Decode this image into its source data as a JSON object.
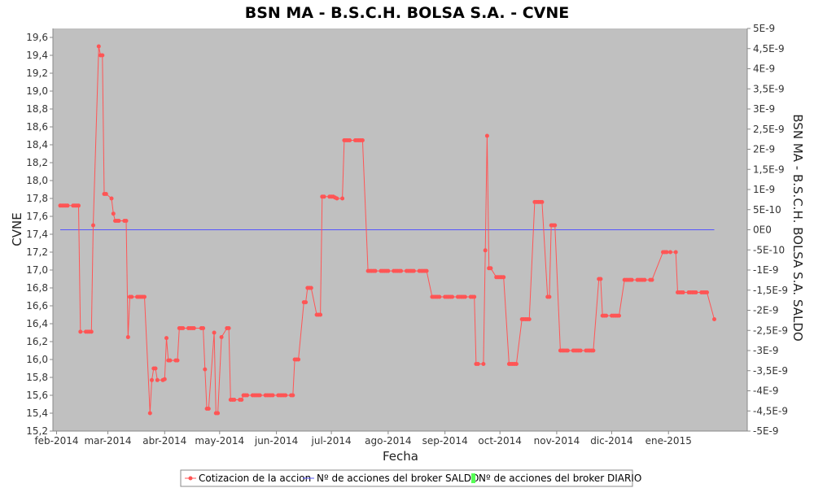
{
  "chart_data": {
    "type": "line",
    "title": "BSN MA - B.S.C.H. BOLSA S.A. - CVNE",
    "xlabel": "Fecha",
    "ylabel": "CVNE",
    "y2label": "BSN MA - B.S.C.H. BOLSA S.A. SALDO",
    "ylim": [
      15.2,
      19.7
    ],
    "y2lim": [
      -5e-09,
      5e-09
    ],
    "xlim": [
      "2014-01-30",
      "2015-02-13"
    ],
    "grid": false,
    "legend_position": "bottom",
    "colors": {
      "plot_background": "#c0c0c0",
      "price_series": "#ff5555",
      "saldo_series": "#5555ff",
      "diario_series": "#55ff55"
    },
    "y_ticks": [
      "15,2",
      "15,4",
      "15,6",
      "15,8",
      "16,0",
      "16,2",
      "16,4",
      "16,6",
      "16,8",
      "17,0",
      "17,2",
      "17,4",
      "17,6",
      "17,8",
      "18,0",
      "18,2",
      "18,4",
      "18,6",
      "18,8",
      "19,0",
      "19,2",
      "19,4",
      "19,6"
    ],
    "y2_ticks": [
      "-5E-9",
      "-4,5E-9",
      "-4E-9",
      "-3,5E-9",
      "-3E-9",
      "-2,5E-9",
      "-2E-9",
      "-1,5E-9",
      "-1E-9",
      "-5E-10",
      "0E0",
      "5E-10",
      "1E-9",
      "1,5E-9",
      "2E-9",
      "2,5E-9",
      "3E-9",
      "3,5E-9",
      "4E-9",
      "4,5E-9",
      "5E-9"
    ],
    "x_ticks": [
      {
        "date": "2014-02-01",
        "label": "feb-2014"
      },
      {
        "date": "2014-03-01",
        "label": "mar-2014"
      },
      {
        "date": "2014-04-01",
        "label": "abr-2014"
      },
      {
        "date": "2014-05-01",
        "label": "may-2014"
      },
      {
        "date": "2014-06-01",
        "label": "jun-2014"
      },
      {
        "date": "2014-07-01",
        "label": "jul-2014"
      },
      {
        "date": "2014-08-01",
        "label": "ago-2014"
      },
      {
        "date": "2014-09-01",
        "label": "sep-2014"
      },
      {
        "date": "2014-10-01",
        "label": "oct-2014"
      },
      {
        "date": "2014-11-01",
        "label": "nov-2014"
      },
      {
        "date": "2014-12-01",
        "label": "dic-2014"
      },
      {
        "date": "2015-01-01",
        "label": "ene-2015"
      }
    ],
    "series": [
      {
        "name": "Cotizacion de la accion",
        "axis": "left",
        "points": [
          [
            "2014-02-03",
            17.72
          ],
          [
            "2014-02-04",
            17.72
          ],
          [
            "2014-02-05",
            17.72
          ],
          [
            "2014-02-06",
            17.72
          ],
          [
            "2014-02-07",
            17.72
          ],
          [
            "2014-02-10",
            17.72
          ],
          [
            "2014-02-11",
            17.72
          ],
          [
            "2014-02-12",
            17.72
          ],
          [
            "2014-02-13",
            17.72
          ],
          [
            "2014-02-14",
            16.31
          ],
          [
            "2014-02-17",
            16.31
          ],
          [
            "2014-02-18",
            16.31
          ],
          [
            "2014-02-19",
            16.31
          ],
          [
            "2014-02-20",
            16.31
          ],
          [
            "2014-02-21",
            17.5
          ],
          [
            "2014-02-24",
            19.5
          ],
          [
            "2014-02-25",
            19.4
          ],
          [
            "2014-02-26",
            19.4
          ],
          [
            "2014-02-27",
            17.85
          ],
          [
            "2014-02-28",
            17.85
          ],
          [
            "2014-03-03",
            17.8
          ],
          [
            "2014-03-04",
            17.63
          ],
          [
            "2014-03-05",
            17.55
          ],
          [
            "2014-03-06",
            17.55
          ],
          [
            "2014-03-07",
            17.55
          ],
          [
            "2014-03-10",
            17.55
          ],
          [
            "2014-03-11",
            17.55
          ],
          [
            "2014-03-12",
            16.25
          ],
          [
            "2014-03-13",
            16.7
          ],
          [
            "2014-03-14",
            16.7
          ],
          [
            "2014-03-17",
            16.7
          ],
          [
            "2014-03-18",
            16.7
          ],
          [
            "2014-03-19",
            16.7
          ],
          [
            "2014-03-20",
            16.7
          ],
          [
            "2014-03-21",
            16.7
          ],
          [
            "2014-03-24",
            15.4
          ],
          [
            "2014-03-25",
            15.77
          ],
          [
            "2014-03-26",
            15.9
          ],
          [
            "2014-03-27",
            15.9
          ],
          [
            "2014-03-28",
            15.77
          ],
          [
            "2014-03-31",
            15.77
          ],
          [
            "2014-04-01",
            15.78
          ],
          [
            "2014-04-02",
            16.24
          ],
          [
            "2014-04-03",
            15.99
          ],
          [
            "2014-04-04",
            15.99
          ],
          [
            "2014-04-07",
            15.99
          ],
          [
            "2014-04-08",
            15.99
          ],
          [
            "2014-04-09",
            16.35
          ],
          [
            "2014-04-10",
            16.35
          ],
          [
            "2014-04-11",
            16.35
          ],
          [
            "2014-04-14",
            16.35
          ],
          [
            "2014-04-15",
            16.35
          ],
          [
            "2014-04-16",
            16.35
          ],
          [
            "2014-04-17",
            16.35
          ],
          [
            "2014-04-21",
            16.35
          ],
          [
            "2014-04-22",
            16.35
          ],
          [
            "2014-04-23",
            15.89
          ],
          [
            "2014-04-24",
            15.45
          ],
          [
            "2014-04-25",
            15.45
          ],
          [
            "2014-04-28",
            16.3
          ],
          [
            "2014-04-29",
            15.4
          ],
          [
            "2014-04-30",
            15.4
          ],
          [
            "2014-05-02",
            16.25
          ],
          [
            "2014-05-05",
            16.35
          ],
          [
            "2014-05-06",
            16.35
          ],
          [
            "2014-05-07",
            15.55
          ],
          [
            "2014-05-08",
            15.55
          ],
          [
            "2014-05-09",
            15.55
          ],
          [
            "2014-05-12",
            15.55
          ],
          [
            "2014-05-13",
            15.55
          ],
          [
            "2014-05-14",
            15.6
          ],
          [
            "2014-05-15",
            15.6
          ],
          [
            "2014-05-16",
            15.6
          ],
          [
            "2014-05-19",
            15.6
          ],
          [
            "2014-05-20",
            15.6
          ],
          [
            "2014-05-21",
            15.6
          ],
          [
            "2014-05-22",
            15.6
          ],
          [
            "2014-05-23",
            15.6
          ],
          [
            "2014-05-26",
            15.6
          ],
          [
            "2014-05-27",
            15.6
          ],
          [
            "2014-05-28",
            15.6
          ],
          [
            "2014-05-29",
            15.6
          ],
          [
            "2014-05-30",
            15.6
          ],
          [
            "2014-06-02",
            15.6
          ],
          [
            "2014-06-03",
            15.6
          ],
          [
            "2014-06-04",
            15.6
          ],
          [
            "2014-06-05",
            15.6
          ],
          [
            "2014-06-06",
            15.6
          ],
          [
            "2014-06-09",
            15.6
          ],
          [
            "2014-06-10",
            15.6
          ],
          [
            "2014-06-11",
            16.0
          ],
          [
            "2014-06-12",
            16.0
          ],
          [
            "2014-06-13",
            16.0
          ],
          [
            "2014-06-16",
            16.64
          ],
          [
            "2014-06-17",
            16.64
          ],
          [
            "2014-06-18",
            16.8
          ],
          [
            "2014-06-19",
            16.8
          ],
          [
            "2014-06-20",
            16.8
          ],
          [
            "2014-06-23",
            16.5
          ],
          [
            "2014-06-24",
            16.5
          ],
          [
            "2014-06-25",
            16.5
          ],
          [
            "2014-06-26",
            17.82
          ],
          [
            "2014-06-27",
            17.82
          ],
          [
            "2014-06-30",
            17.82
          ],
          [
            "2014-07-01",
            17.82
          ],
          [
            "2014-07-02",
            17.82
          ],
          [
            "2014-07-03",
            17.81
          ],
          [
            "2014-07-04",
            17.8
          ],
          [
            "2014-07-07",
            17.8
          ],
          [
            "2014-07-08",
            18.45
          ],
          [
            "2014-07-09",
            18.45
          ],
          [
            "2014-07-10",
            18.45
          ],
          [
            "2014-07-11",
            18.45
          ],
          [
            "2014-07-14",
            18.45
          ],
          [
            "2014-07-15",
            18.45
          ],
          [
            "2014-07-16",
            18.45
          ],
          [
            "2014-07-17",
            18.45
          ],
          [
            "2014-07-18",
            18.45
          ],
          [
            "2014-07-21",
            16.99
          ],
          [
            "2014-07-22",
            16.99
          ],
          [
            "2014-07-23",
            16.99
          ],
          [
            "2014-07-24",
            16.99
          ],
          [
            "2014-07-25",
            16.99
          ],
          [
            "2014-07-28",
            16.99
          ],
          [
            "2014-07-29",
            16.99
          ],
          [
            "2014-07-30",
            16.99
          ],
          [
            "2014-07-31",
            16.99
          ],
          [
            "2014-08-01",
            16.99
          ],
          [
            "2014-08-04",
            16.99
          ],
          [
            "2014-08-05",
            16.99
          ],
          [
            "2014-08-06",
            16.99
          ],
          [
            "2014-08-07",
            16.99
          ],
          [
            "2014-08-08",
            16.99
          ],
          [
            "2014-08-11",
            16.99
          ],
          [
            "2014-08-12",
            16.99
          ],
          [
            "2014-08-13",
            16.99
          ],
          [
            "2014-08-14",
            16.99
          ],
          [
            "2014-08-15",
            16.99
          ],
          [
            "2014-08-18",
            16.99
          ],
          [
            "2014-08-19",
            16.99
          ],
          [
            "2014-08-20",
            16.99
          ],
          [
            "2014-08-21",
            16.99
          ],
          [
            "2014-08-22",
            16.99
          ],
          [
            "2014-08-25",
            16.7
          ],
          [
            "2014-08-26",
            16.7
          ],
          [
            "2014-08-27",
            16.7
          ],
          [
            "2014-08-28",
            16.7
          ],
          [
            "2014-08-29",
            16.7
          ],
          [
            "2014-09-01",
            16.7
          ],
          [
            "2014-09-02",
            16.7
          ],
          [
            "2014-09-03",
            16.7
          ],
          [
            "2014-09-04",
            16.7
          ],
          [
            "2014-09-05",
            16.7
          ],
          [
            "2014-09-08",
            16.7
          ],
          [
            "2014-09-09",
            16.7
          ],
          [
            "2014-09-10",
            16.7
          ],
          [
            "2014-09-11",
            16.7
          ],
          [
            "2014-09-12",
            16.7
          ],
          [
            "2014-09-15",
            16.7
          ],
          [
            "2014-09-16",
            16.7
          ],
          [
            "2014-09-17",
            16.7
          ],
          [
            "2014-09-18",
            15.95
          ],
          [
            "2014-09-19",
            15.95
          ],
          [
            "2014-09-22",
            15.95
          ],
          [
            "2014-09-23",
            17.22
          ],
          [
            "2014-09-24",
            18.5
          ],
          [
            "2014-09-25",
            17.02
          ],
          [
            "2014-09-26",
            17.02
          ],
          [
            "2014-09-29",
            16.92
          ],
          [
            "2014-09-30",
            16.92
          ],
          [
            "2014-10-01",
            16.92
          ],
          [
            "2014-10-02",
            16.92
          ],
          [
            "2014-10-03",
            16.92
          ],
          [
            "2014-10-06",
            15.95
          ],
          [
            "2014-10-07",
            15.95
          ],
          [
            "2014-10-08",
            15.95
          ],
          [
            "2014-10-09",
            15.95
          ],
          [
            "2014-10-10",
            15.95
          ],
          [
            "2014-10-13",
            16.45
          ],
          [
            "2014-10-14",
            16.45
          ],
          [
            "2014-10-15",
            16.45
          ],
          [
            "2014-10-16",
            16.45
          ],
          [
            "2014-10-17",
            16.45
          ],
          [
            "2014-10-20",
            17.76
          ],
          [
            "2014-10-21",
            17.76
          ],
          [
            "2014-10-22",
            17.76
          ],
          [
            "2014-10-23",
            17.76
          ],
          [
            "2014-10-24",
            17.76
          ],
          [
            "2014-10-27",
            16.7
          ],
          [
            "2014-10-28",
            16.7
          ],
          [
            "2014-10-29",
            17.5
          ],
          [
            "2014-10-30",
            17.5
          ],
          [
            "2014-10-31",
            17.5
          ],
          [
            "2014-11-03",
            16.1
          ],
          [
            "2014-11-04",
            16.1
          ],
          [
            "2014-11-05",
            16.1
          ],
          [
            "2014-11-06",
            16.1
          ],
          [
            "2014-11-07",
            16.1
          ],
          [
            "2014-11-10",
            16.1
          ],
          [
            "2014-11-11",
            16.1
          ],
          [
            "2014-11-12",
            16.1
          ],
          [
            "2014-11-13",
            16.1
          ],
          [
            "2014-11-14",
            16.1
          ],
          [
            "2014-11-17",
            16.1
          ],
          [
            "2014-11-18",
            16.1
          ],
          [
            "2014-11-19",
            16.1
          ],
          [
            "2014-11-20",
            16.1
          ],
          [
            "2014-11-21",
            16.1
          ],
          [
            "2014-11-24",
            16.9
          ],
          [
            "2014-11-25",
            16.9
          ],
          [
            "2014-11-26",
            16.49
          ],
          [
            "2014-11-27",
            16.49
          ],
          [
            "2014-11-28",
            16.49
          ],
          [
            "2014-12-01",
            16.49
          ],
          [
            "2014-12-02",
            16.49
          ],
          [
            "2014-12-03",
            16.49
          ],
          [
            "2014-12-04",
            16.49
          ],
          [
            "2014-12-05",
            16.49
          ],
          [
            "2014-12-08",
            16.89
          ],
          [
            "2014-12-09",
            16.89
          ],
          [
            "2014-12-10",
            16.89
          ],
          [
            "2014-12-11",
            16.89
          ],
          [
            "2014-12-12",
            16.89
          ],
          [
            "2014-12-15",
            16.89
          ],
          [
            "2014-12-16",
            16.89
          ],
          [
            "2014-12-17",
            16.89
          ],
          [
            "2014-12-18",
            16.89
          ],
          [
            "2014-12-19",
            16.89
          ],
          [
            "2014-12-22",
            16.89
          ],
          [
            "2014-12-23",
            16.89
          ],
          [
            "2014-12-29",
            17.2
          ],
          [
            "2014-12-30",
            17.2
          ],
          [
            "2014-12-31",
            17.2
          ],
          [
            "2015-01-02",
            17.2
          ],
          [
            "2015-01-05",
            17.2
          ],
          [
            "2015-01-06",
            16.75
          ],
          [
            "2015-01-07",
            16.75
          ],
          [
            "2015-01-08",
            16.75
          ],
          [
            "2015-01-09",
            16.75
          ],
          [
            "2015-01-12",
            16.75
          ],
          [
            "2015-01-13",
            16.75
          ],
          [
            "2015-01-14",
            16.75
          ],
          [
            "2015-01-15",
            16.75
          ],
          [
            "2015-01-16",
            16.75
          ],
          [
            "2015-01-19",
            16.75
          ],
          [
            "2015-01-20",
            16.75
          ],
          [
            "2015-01-21",
            16.75
          ],
          [
            "2015-01-22",
            16.75
          ],
          [
            "2015-01-26",
            16.45
          ]
        ]
      },
      {
        "name": "Nº de acciones del broker SALDO",
        "axis": "right",
        "points": [
          [
            "2014-02-03",
            0
          ],
          [
            "2015-01-26",
            0
          ]
        ]
      },
      {
        "name": "Nº de acciones del broker DIARIO",
        "axis": "right",
        "points": []
      }
    ]
  }
}
